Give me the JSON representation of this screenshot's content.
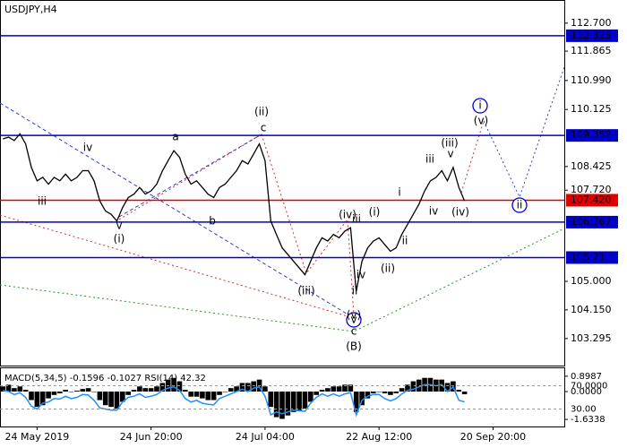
{
  "chart_data": {
    "type": "line",
    "title": "USDJPY,H4",
    "color": "#000000",
    "categories": [
      null,
      null,
      null,
      null,
      null,
      null,
      "24 May 2019",
      null,
      null,
      null,
      null,
      null,
      null,
      null,
      null,
      null,
      null,
      null,
      null,
      null,
      null,
      null,
      null,
      null,
      null,
      null,
      "24 Jun 20:00",
      null,
      null,
      null,
      null,
      null,
      null,
      null,
      null,
      null,
      null,
      null,
      null,
      null,
      null,
      null,
      null,
      null,
      null,
      null,
      "24 Jul 04:00",
      null,
      null,
      null,
      null,
      null,
      null,
      null,
      null,
      null,
      null,
      null,
      null,
      null,
      null,
      null,
      null,
      null,
      null,
      null,
      "22 Aug 12:00",
      null,
      null,
      null,
      null,
      null,
      null,
      null,
      null,
      null,
      null,
      null,
      null,
      null,
      null,
      null,
      null,
      null,
      null,
      null,
      "20 Sep 20:00",
      null,
      null,
      null,
      null,
      null,
      null,
      null,
      null,
      null,
      null,
      null,
      null
    ],
    "values": [
      109.25,
      109.3,
      109.2,
      109.4,
      109.1,
      108.4,
      108.0,
      108.1,
      107.9,
      108.1,
      108.0,
      108.2,
      108.0,
      108.1,
      108.3,
      108.3,
      108.0,
      107.4,
      107.1,
      107.0,
      106.8,
      107.2,
      107.5,
      107.6,
      107.8,
      107.6,
      107.7,
      107.9,
      108.3,
      108.6,
      108.9,
      108.7,
      108.2,
      107.9,
      108.0,
      107.8,
      107.6,
      107.5,
      107.8,
      107.9,
      108.1,
      108.3,
      108.6,
      108.5,
      108.8,
      109.1,
      108.6,
      106.8,
      106.4,
      106.0,
      105.8,
      105.6,
      105.4,
      105.2,
      105.6,
      106.0,
      106.3,
      106.2,
      106.4,
      106.3,
      106.5,
      106.6,
      104.7,
      105.6,
      106.0,
      106.2,
      106.3,
      106.1,
      105.9,
      106.0,
      106.4,
      106.7,
      107.0,
      107.3,
      107.7,
      108.0,
      108.1,
      108.3,
      108.0,
      108.4,
      107.8,
      107.4,
      null,
      null,
      null,
      null,
      null,
      null,
      null,
      null,
      null,
      null,
      null,
      null,
      null,
      null,
      null,
      null,
      null
    ],
    "ylim": [
      102.49,
      113.39
    ],
    "yticks": [
      {
        "value": 112.7,
        "label": "112.700"
      },
      111.865,
      {
        "value": 110.99,
        "label": "110.990"
      },
      110.125,
      108.425,
      {
        "value": 107.72,
        "label": "107.720"
      },
      {
        "value": 105.0,
        "label": "105.000"
      },
      {
        "value": 104.15,
        "label": "104.150"
      },
      103.295
    ],
    "levels": [
      {
        "value": 112.325,
        "color": "#0000c8"
      },
      {
        "value": 109.352,
        "color": "#0000c8"
      },
      {
        "value": 107.42,
        "label": "107.420",
        "color": "#e00000"
      },
      {
        "value": 106.767,
        "color": "#0000c8"
      },
      {
        "value": 105.71,
        "color": "#0000c8"
      }
    ],
    "wave_labels": [
      {
        "text": "iv",
        "color": "#808080"
      },
      {
        "text": "iii",
        "color": "#808080"
      },
      {
        "text": "a",
        "color": "#808080"
      },
      {
        "text": "b",
        "color": "#808080"
      },
      {
        "text": "c",
        "color": "#808080"
      },
      {
        "text": "(ii)",
        "color": "#d00000"
      },
      {
        "text": "v",
        "color": "#808080"
      },
      {
        "text": "(i)",
        "color": "#d00000"
      },
      {
        "text": "(iii)",
        "color": "#d00000"
      },
      {
        "text": "(iv)",
        "color": "#d00000"
      },
      {
        "text": "iii",
        "color": "#808080"
      },
      {
        "text": "(i)",
        "color": "#d00000"
      },
      {
        "text": "iv",
        "color": "#808080"
      },
      {
        "text": "ii",
        "color": "#808080"
      },
      {
        "text": "(ii)",
        "color": "#d00000"
      },
      {
        "text": "ii",
        "color": "#808080"
      },
      {
        "text": "i",
        "color": "#808080"
      },
      {
        "text": "iii",
        "color": "#808080"
      },
      {
        "text": "iv",
        "color": "#808080"
      },
      {
        "text": "(iii)",
        "color": "#d00000"
      },
      {
        "text": "v",
        "color": "#808080"
      },
      {
        "text": "(iv)",
        "color": "#d00000"
      },
      {
        "text": "(v)",
        "color": "#d00000"
      },
      {
        "text": "i",
        "color": "#0000c8",
        "circled": true
      },
      {
        "text": "ii",
        "color": "#0000c8",
        "circled": true
      },
      {
        "text": "v",
        "color": "#0000c8",
        "circled": true
      },
      {
        "text": "(v)",
        "color": "#d00000"
      },
      {
        "text": "c",
        "color": "#808080"
      },
      {
        "text": "(B)",
        "color": "#208020"
      }
    ],
    "indicator": {
      "label": "MACD(5,34,5) -0.1596 -0.1027 RSI(14) 42.32",
      "histogram_color": "#000000",
      "rsi_color": "#1e90ff",
      "histogram": [
        0.3,
        0.4,
        0.2,
        0.3,
        0.1,
        -0.5,
        -0.9,
        -0.8,
        -0.4,
        -0.2,
        -0.1,
        0.1,
        0,
        0.05,
        0.15,
        0.2,
        0,
        -0.5,
        -0.8,
        -0.9,
        -1.0,
        -0.6,
        -0.2,
        0.1,
        0.3,
        0.2,
        0.2,
        0.3,
        0.5,
        0.7,
        0.8,
        0.6,
        0.1,
        -0.3,
        -0.3,
        -0.4,
        -0.5,
        -0.5,
        -0.2,
        0,
        0.2,
        0.3,
        0.5,
        0.5,
        0.6,
        0.7,
        0.3,
        -0.9,
        -1.5,
        -1.6,
        -1.4,
        -1.2,
        -1.1,
        -1.0,
        -0.6,
        -0.2,
        0.1,
        0.2,
        0.3,
        0.3,
        0.4,
        0.4,
        -1.2,
        -0.8,
        -0.4,
        -0.1,
        0,
        -0.1,
        -0.2,
        -0.1,
        0.2,
        0.4,
        0.6,
        0.7,
        0.8,
        0.8,
        0.7,
        0.7,
        0.5,
        0.6,
        0.1,
        -0.1596,
        null,
        null,
        null,
        null,
        null,
        null,
        null,
        null,
        null,
        null,
        null,
        null,
        null,
        null,
        null,
        null,
        null
      ],
      "rsi": [
        62,
        60,
        55,
        58,
        50,
        35,
        30,
        40,
        42,
        48,
        47,
        52,
        48,
        50,
        55,
        54,
        45,
        32,
        30,
        28,
        28,
        42,
        50,
        52,
        56,
        50,
        52,
        55,
        62,
        66,
        68,
        62,
        48,
        42,
        45,
        40,
        38,
        37,
        48,
        52,
        56,
        60,
        64,
        60,
        66,
        68,
        52,
        20,
        25,
        22,
        25,
        28,
        27,
        26,
        40,
        50,
        56,
        52,
        56,
        52,
        56,
        58,
        20,
        45,
        52,
        55,
        55,
        48,
        44,
        48,
        56,
        62,
        64,
        68,
        72,
        72,
        70,
        72,
        60,
        68,
        45,
        42.32,
        null,
        null,
        null,
        null,
        null,
        null,
        null,
        null,
        null,
        null,
        null,
        null,
        null,
        null,
        null,
        null,
        null
      ],
      "ylim": [
        -2.047,
        1.364
      ],
      "yticks": [
        0.8987,
        {
          "value": 0,
          "label": "0.0000"
        },
        -1.6338
      ],
      "rsi_ylim": [
        0,
        100
      ],
      "rsi_yticks": [
        {
          "value": 70,
          "label": "70.0000"
        },
        {
          "value": 30,
          "label": "30.00"
        }
      ]
    }
  }
}
